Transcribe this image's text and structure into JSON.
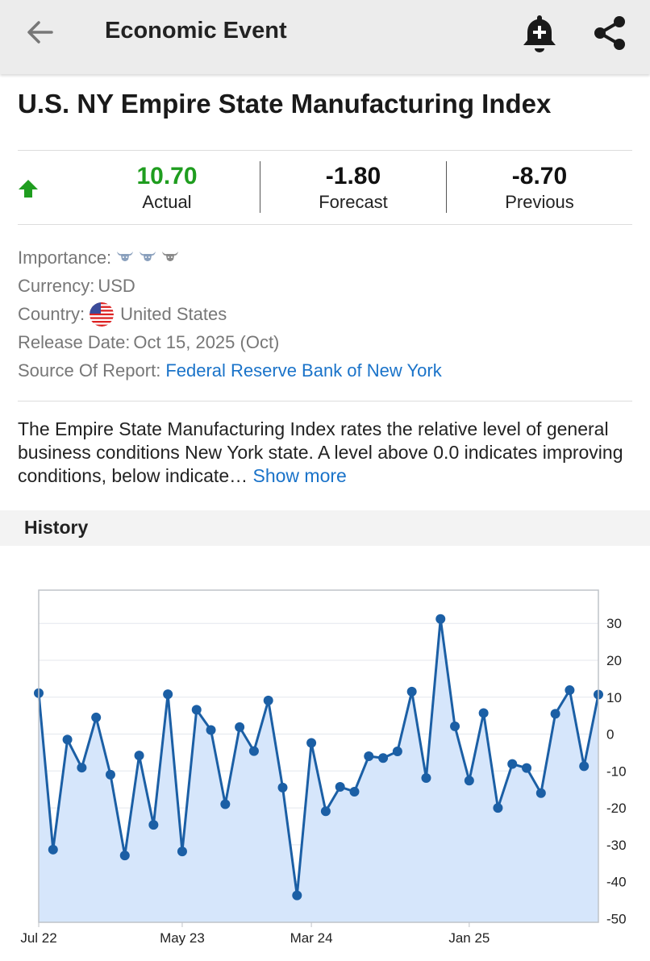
{
  "header": {
    "title": "Economic Event",
    "back_icon": "arrow-left-icon",
    "bell_icon": "bell-add-icon",
    "share_icon": "share-icon"
  },
  "event": {
    "name": "U.S. NY Empire State Manufacturing Index",
    "actual": "10.70",
    "actual_label": "Actual",
    "forecast": "-1.80",
    "forecast_label": "Forecast",
    "previous": "-8.70",
    "previous_label": "Previous",
    "trend_icon": "arrow-up-icon",
    "actual_color": "#1f9d1f"
  },
  "details": {
    "importance_label": "Importance:",
    "importance_level": 2,
    "importance_max": 3,
    "currency_label": "Currency:",
    "currency": "USD",
    "country_label": "Country:",
    "country": "United States",
    "release_label": "Release Date:",
    "release_date": "Oct 15, 2025 (Oct)",
    "source_label": "Source Of Report:",
    "source": "Federal Reserve Bank of New York"
  },
  "description": {
    "text": "The Empire State Manufacturing Index rates the relative level of general business conditions New York state. A level above 0.0 indicates improving conditions, below indicate…",
    "show_more": "Show more"
  },
  "history": {
    "title": "History"
  },
  "chart_data": {
    "type": "area",
    "series": [
      {
        "values": [
          11.1,
          -31.3,
          -1.5,
          -9.1,
          4.5,
          -11.0,
          -32.9,
          -5.8,
          -24.6,
          10.8,
          -31.8,
          6.6,
          1.1,
          -19.0,
          1.9,
          -4.6,
          9.1,
          -14.5,
          -43.7,
          -2.4,
          -20.9,
          -14.3,
          -15.6,
          -6.0,
          -6.5,
          -4.7,
          11.5,
          -11.9,
          31.2,
          2.1,
          -12.6,
          5.7,
          -20.0,
          -8.1,
          -9.2,
          -16.0,
          5.5,
          11.9,
          -8.7,
          10.7
        ],
        "color": "#1b5fa5",
        "fill": "#d6e6fb"
      }
    ],
    "x_tick_labels": [
      "Jul 22",
      "May 23",
      "Mar 24",
      "Jan 25"
    ],
    "x_tick_indices": [
      0,
      10,
      19,
      30
    ],
    "y_ticks": [
      30,
      20,
      10,
      0,
      -10,
      -20,
      -30,
      -40,
      -50
    ],
    "ylim": [
      -51,
      39
    ],
    "grid": true,
    "y_axis_side": "right"
  }
}
